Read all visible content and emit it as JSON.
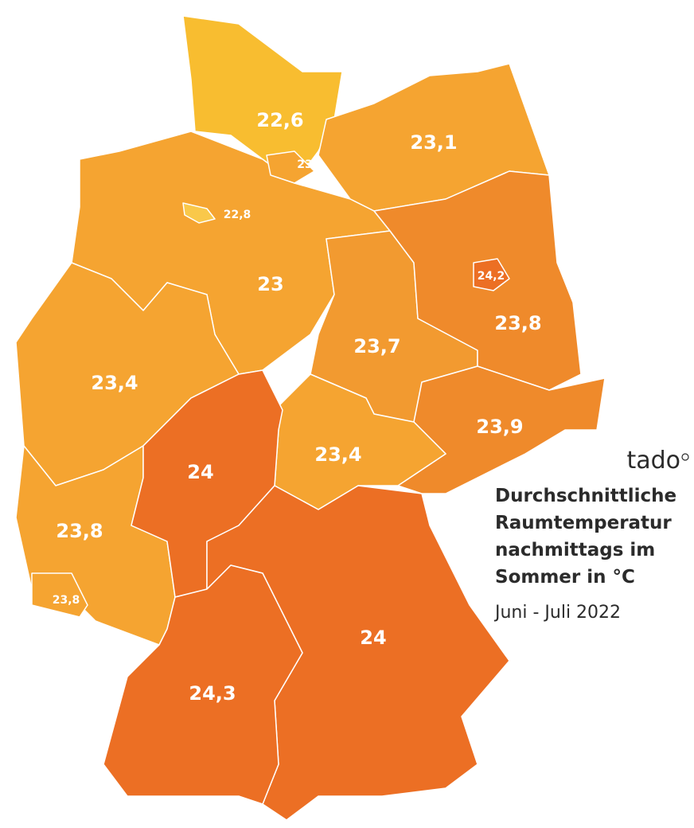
{
  "map": {
    "brand": "tado",
    "title": [
      "Durchschnittliche",
      "Raumtemperatur",
      "nachmittags im",
      "Sommer in °C"
    ],
    "subtitle": "Juni - Juli 2022",
    "regions": [
      {
        "label": "22,6"
      },
      {
        "label": "23"
      },
      {
        "label": "23,1"
      },
      {
        "label": "22,8"
      },
      {
        "label": "23"
      },
      {
        "label": "24,2"
      },
      {
        "label": "23,7"
      },
      {
        "label": "23,8"
      },
      {
        "label": "23,4"
      },
      {
        "label": "23,9"
      },
      {
        "label": "24"
      },
      {
        "label": "23,4"
      },
      {
        "label": "23,8"
      },
      {
        "label": "23,8"
      },
      {
        "label": "24"
      },
      {
        "label": "24,3"
      }
    ]
  }
}
